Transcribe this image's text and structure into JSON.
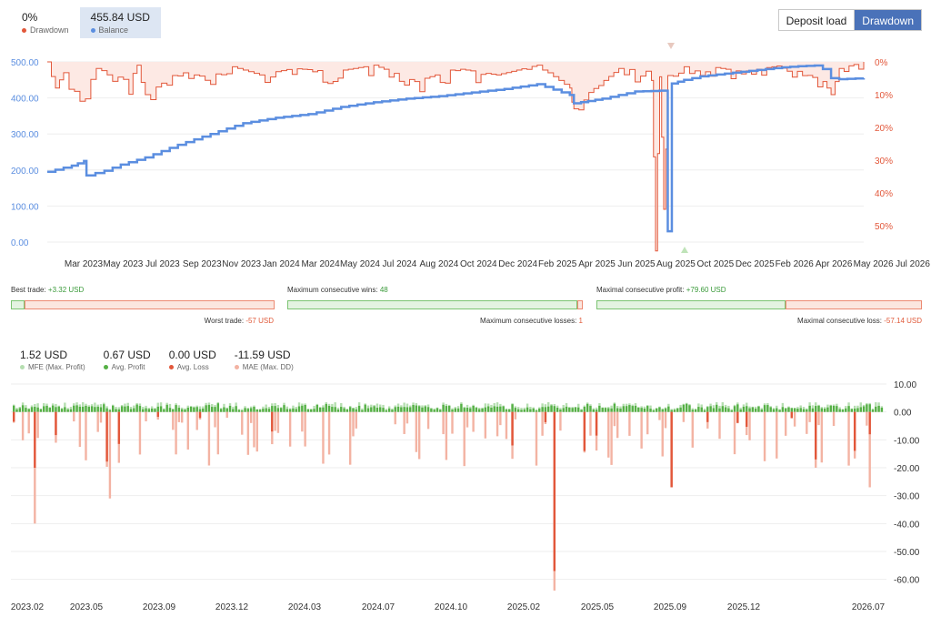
{
  "legend_top": {
    "drawdown_value": "0%",
    "drawdown_label": "Drawdown",
    "balance_value": "455.84 USD",
    "balance_label": "Balance"
  },
  "buttons": {
    "deposit_load": "Deposit load",
    "drawdown": "Drawdown"
  },
  "colors": {
    "balance": "#5b8ee0",
    "drawdown": "#e2573a",
    "green": "#55b045",
    "light_green": "#b5deb0",
    "light_red": "#f3b3a3"
  },
  "stats": {
    "best_trade_label": "Best trade:",
    "best_trade_value": "+3.32 USD",
    "worst_trade_label": "Worst trade:",
    "worst_trade_value": "-57 USD",
    "max_consec_wins_label": "Maximum consecutive wins:",
    "max_consec_wins_value": "48",
    "max_consec_losses_label": "Maximum consecutive losses:",
    "max_consec_losses_value": "1",
    "max_consec_profit_label": "Maximal consecutive profit:",
    "max_consec_profit_value": "+79.60 USD",
    "max_consec_loss_label": "Maximal consecutive loss:",
    "max_consec_loss_value": "-57.14 USD"
  },
  "stat_bars": [
    {
      "good_fraction": 0.05
    },
    {
      "good_fraction": 0.98
    },
    {
      "good_fraction": 0.58
    }
  ],
  "legend_bottom": [
    {
      "value": "1.52 USD",
      "label": "MFE (Max. Profit)",
      "color": "#b5deb0"
    },
    {
      "value": "0.67 USD",
      "label": "Avg. Profit",
      "color": "#55b045"
    },
    {
      "value": "0.00 USD",
      "label": "Avg. Loss",
      "color": "#e2573a"
    },
    {
      "value": "-11.59 USD",
      "label": "MAE (Max. DD)",
      "color": "#f3b3a3"
    }
  ],
  "chart_data": [
    {
      "type": "line",
      "x_tick_labels": [
        "Mar 2023",
        "May 2023",
        "Jul 2023",
        "Sep 2023",
        "Nov 2023",
        "Jan 2024",
        "Mar 2024",
        "May 2024",
        "Jul 2024",
        "Aug 2024",
        "Oct 2024",
        "Dec 2024",
        "Feb 2025",
        "Apr 2025",
        "Jun 2025",
        "Aug 2025",
        "Oct 2025",
        "Dec 2025",
        "Feb 2026",
        "Apr 2026",
        "May 2026",
        "Jul 2026"
      ],
      "y_left_ticks": [
        "500.00",
        "400.00",
        "300.00",
        "200.00",
        "100.00",
        "0.00"
      ],
      "y_left_lim": [
        0,
        500
      ],
      "y_right_ticks": [
        "0%",
        "10%",
        "20%",
        "30%",
        "40%",
        "50%"
      ],
      "y_right_lim": [
        0,
        55
      ],
      "series": [
        {
          "name": "Balance",
          "x": [
            0,
            0.03,
            0.045,
            0.048,
            0.07,
            0.09,
            0.12,
            0.16,
            0.2,
            0.24,
            0.28,
            0.32,
            0.36,
            0.4,
            0.44,
            0.48,
            0.52,
            0.56,
            0.6,
            0.64,
            0.645,
            0.68,
            0.72,
            0.75,
            0.76,
            0.765,
            0.78,
            0.8,
            0.84,
            0.88,
            0.9,
            0.92,
            0.94,
            0.95,
            0.96,
            0.97,
            1.0
          ],
          "values": [
            195,
            212,
            225,
            185,
            198,
            215,
            235,
            270,
            300,
            330,
            345,
            355,
            375,
            388,
            398,
            405,
            415,
            425,
            438,
            408,
            385,
            398,
            418,
            420,
            30,
            440,
            450,
            460,
            470,
            480,
            485,
            488,
            490,
            480,
            455,
            452,
            455
          ]
        },
        {
          "name": "Drawdown",
          "x": [
            0,
            0.01,
            0.02,
            0.04,
            0.06,
            0.1,
            0.11,
            0.12,
            0.16,
            0.2,
            0.22,
            0.26,
            0.3,
            0.35,
            0.4,
            0.45,
            0.5,
            0.55,
            0.6,
            0.64,
            0.645,
            0.7,
            0.74,
            0.745,
            0.75,
            0.755,
            0.76,
            0.8,
            0.85,
            0.9,
            0.95,
            0.96,
            0.97,
            1.0
          ],
          "values": [
            0,
            8,
            3,
            12,
            2,
            6,
            1,
            10,
            3,
            5,
            1,
            4,
            2,
            3,
            1,
            6,
            2,
            4,
            1,
            8,
            13,
            2,
            3,
            55,
            1,
            45,
            2,
            1,
            3,
            1,
            6,
            10,
            2,
            0
          ]
        }
      ]
    },
    {
      "type": "bar",
      "x_tick_labels": [
        "2023.02",
        "2023.05",
        "2023.09",
        "2023.12",
        "2024.03",
        "2024.07",
        "2024.10",
        "2025.02",
        "2025.05",
        "2025.09",
        "2025.12",
        "2026.07"
      ],
      "y_ticks": [
        "10.00",
        "0.00",
        "-10.00",
        "-20.00",
        "-30.00",
        "-40.00",
        "-50.00",
        "-60.00"
      ],
      "ylim": [
        -65,
        10
      ],
      "series": [
        {
          "name": "MFE (Max. Profit)",
          "approx_range": [
            0,
            3
          ]
        },
        {
          "name": "Avg. Profit",
          "approx_range": [
            0,
            2
          ]
        },
        {
          "name": "Avg. Loss",
          "notable_values": [
            -20,
            -57,
            -27,
            -17
          ]
        },
        {
          "name": "MAE (Max. DD)",
          "notable_values": [
            -40,
            -31,
            -64,
            -27,
            -27
          ]
        }
      ]
    }
  ]
}
